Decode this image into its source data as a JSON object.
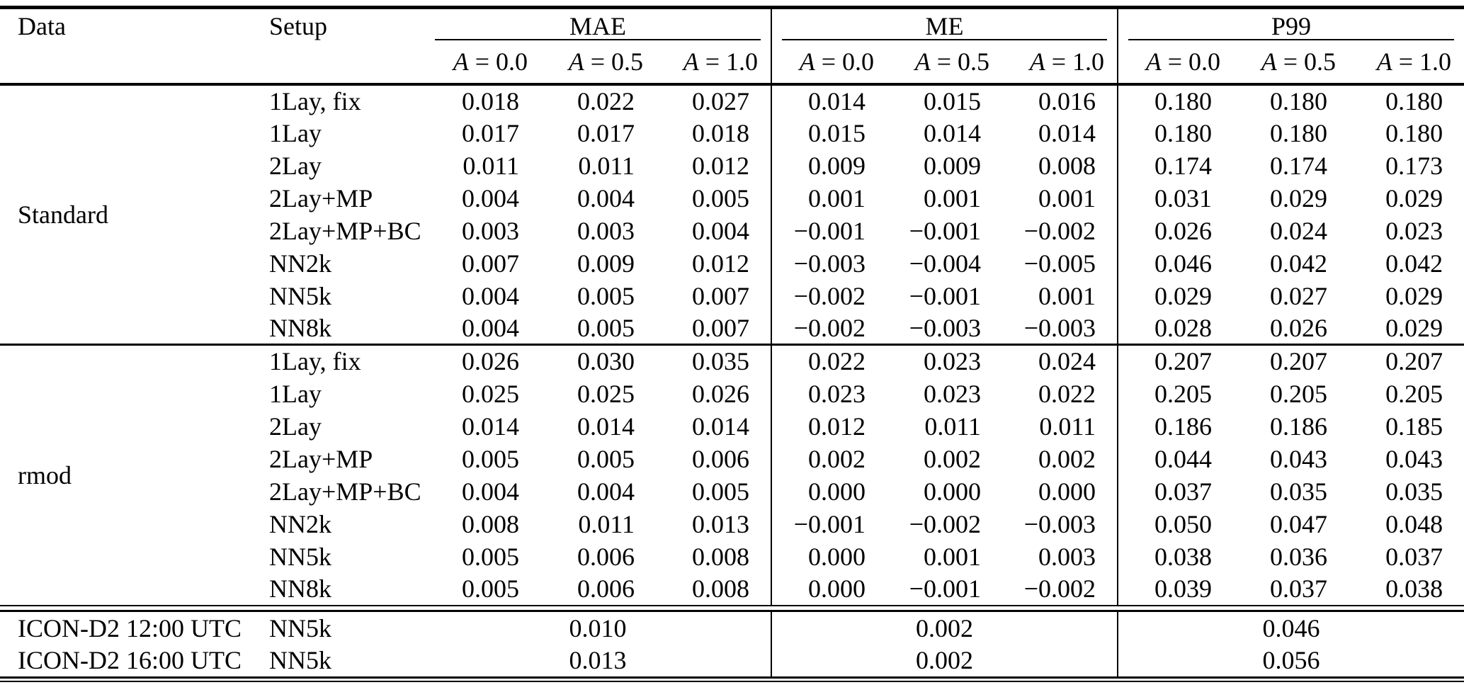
{
  "table": {
    "header": {
      "data_label": "Data",
      "setup_label": "Setup",
      "groups": [
        "MAE",
        "ME",
        "P99"
      ],
      "sub_labels": [
        "A = 0.0",
        "A = 0.5",
        "A = 1.0"
      ]
    },
    "sections": [
      {
        "data_label": "Standard",
        "rows": [
          {
            "setup": "1Lay, fix",
            "mae": [
              "0.018",
              "0.022",
              "0.027"
            ],
            "me": [
              "0.014",
              "0.015",
              "0.016"
            ],
            "p99": [
              "0.180",
              "0.180",
              "0.180"
            ]
          },
          {
            "setup": "1Lay",
            "mae": [
              "0.017",
              "0.017",
              "0.018"
            ],
            "me": [
              "0.015",
              "0.014",
              "0.014"
            ],
            "p99": [
              "0.180",
              "0.180",
              "0.180"
            ]
          },
          {
            "setup": "2Lay",
            "mae": [
              "0.011",
              "0.011",
              "0.012"
            ],
            "me": [
              "0.009",
              "0.009",
              "0.008"
            ],
            "p99": [
              "0.174",
              "0.174",
              "0.173"
            ]
          },
          {
            "setup": "2Lay+MP",
            "mae": [
              "0.004",
              "0.004",
              "0.005"
            ],
            "me": [
              "0.001",
              "0.001",
              "0.001"
            ],
            "p99": [
              "0.031",
              "0.029",
              "0.029"
            ]
          },
          {
            "setup": "2Lay+MP+BC",
            "mae": [
              "0.003",
              "0.003",
              "0.004"
            ],
            "me": [
              "−0.001",
              "−0.001",
              "−0.002"
            ],
            "p99": [
              "0.026",
              "0.024",
              "0.023"
            ]
          },
          {
            "setup": "NN2k",
            "mae": [
              "0.007",
              "0.009",
              "0.012"
            ],
            "me": [
              "−0.003",
              "−0.004",
              "−0.005"
            ],
            "p99": [
              "0.046",
              "0.042",
              "0.042"
            ]
          },
          {
            "setup": "NN5k",
            "mae": [
              "0.004",
              "0.005",
              "0.007"
            ],
            "me": [
              "−0.002",
              "−0.001",
              "0.001"
            ],
            "p99": [
              "0.029",
              "0.027",
              "0.029"
            ]
          },
          {
            "setup": "NN8k",
            "mae": [
              "0.004",
              "0.005",
              "0.007"
            ],
            "me": [
              "−0.002",
              "−0.003",
              "−0.003"
            ],
            "p99": [
              "0.028",
              "0.026",
              "0.029"
            ]
          }
        ]
      },
      {
        "data_label": "rmod",
        "rows": [
          {
            "setup": "1Lay, fix",
            "mae": [
              "0.026",
              "0.030",
              "0.035"
            ],
            "me": [
              "0.022",
              "0.023",
              "0.024"
            ],
            "p99": [
              "0.207",
              "0.207",
              "0.207"
            ]
          },
          {
            "setup": "1Lay",
            "mae": [
              "0.025",
              "0.025",
              "0.026"
            ],
            "me": [
              "0.023",
              "0.023",
              "0.022"
            ],
            "p99": [
              "0.205",
              "0.205",
              "0.205"
            ]
          },
          {
            "setup": "2Lay",
            "mae": [
              "0.014",
              "0.014",
              "0.014"
            ],
            "me": [
              "0.012",
              "0.011",
              "0.011"
            ],
            "p99": [
              "0.186",
              "0.186",
              "0.185"
            ]
          },
          {
            "setup": "2Lay+MP",
            "mae": [
              "0.005",
              "0.005",
              "0.006"
            ],
            "me": [
              "0.002",
              "0.002",
              "0.002"
            ],
            "p99": [
              "0.044",
              "0.043",
              "0.043"
            ]
          },
          {
            "setup": "2Lay+MP+BC",
            "mae": [
              "0.004",
              "0.004",
              "0.005"
            ],
            "me": [
              "0.000",
              "0.000",
              "0.000"
            ],
            "p99": [
              "0.037",
              "0.035",
              "0.035"
            ]
          },
          {
            "setup": "NN2k",
            "mae": [
              "0.008",
              "0.011",
              "0.013"
            ],
            "me": [
              "−0.001",
              "−0.002",
              "−0.003"
            ],
            "p99": [
              "0.050",
              "0.047",
              "0.048"
            ]
          },
          {
            "setup": "NN5k",
            "mae": [
              "0.005",
              "0.006",
              "0.008"
            ],
            "me": [
              "0.000",
              "0.001",
              "0.003"
            ],
            "p99": [
              "0.038",
              "0.036",
              "0.037"
            ]
          },
          {
            "setup": "NN8k",
            "mae": [
              "0.005",
              "0.006",
              "0.008"
            ],
            "me": [
              "0.000",
              "−0.001",
              "−0.002"
            ],
            "p99": [
              "0.039",
              "0.037",
              "0.038"
            ]
          }
        ]
      }
    ],
    "summary_rows": [
      {
        "data_label": "ICON-D2 12:00 UTC",
        "setup": "NN5k",
        "mae": "0.010",
        "me": "0.002",
        "p99": "0.046"
      },
      {
        "data_label": "ICON-D2 16:00 UTC",
        "setup": "NN5k",
        "mae": "0.013",
        "me": "0.002",
        "p99": "0.056"
      }
    ],
    "colors": {
      "text": "#000000",
      "background": "#ffffff",
      "rule": "#000000"
    }
  }
}
